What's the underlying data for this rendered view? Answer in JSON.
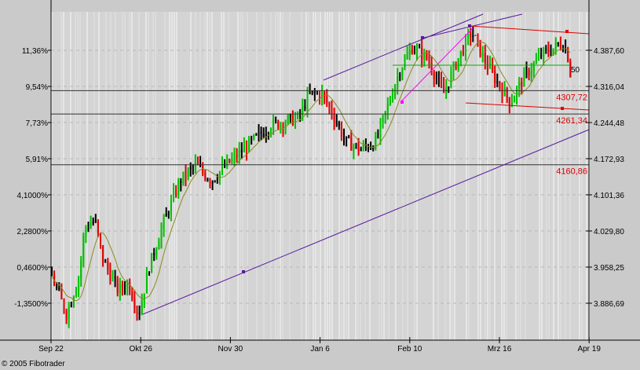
{
  "chart_data": {
    "type": "ohlc",
    "x_ticks": [
      "Sep 22",
      "Okt 26",
      "Nov 30",
      "Jan 6",
      "Feb 10",
      "Mrz 16",
      "Apr 19"
    ],
    "y_left_ticks": [
      "11,36%",
      "9,54%",
      "7,73%",
      "5,91%",
      "4,1000%",
      "2,2800%",
      "0,4600%",
      "-1,3500%"
    ],
    "y_right_ticks": [
      "4.387,60",
      "4.316,04",
      "4.244,48",
      "4.172,93",
      "4.101,36",
      "4.029,80",
      "3.958,25",
      "3.886,69"
    ],
    "ylim": [
      3850,
      4470
    ],
    "close_path": [
      [
        "Sep 22",
        3942.7
      ],
      [
        "Sep 28",
        3864.9
      ],
      [
        "Oct 3",
        3942.7
      ],
      [
        "Oct 5",
        4036.0
      ],
      [
        "Oct 9",
        4051.6
      ],
      [
        "Oct 12",
        3973.8
      ],
      [
        "Oct 18",
        3911.6
      ],
      [
        "Oct 22",
        3927.1
      ],
      [
        "Oct 26",
        3864.9
      ],
      [
        "Oct 30",
        3958.2
      ],
      [
        "Nov 5",
        4051.6
      ],
      [
        "Nov 11",
        4129.4
      ],
      [
        "Nov 17",
        4160.5
      ],
      [
        "Nov 23",
        4129.4
      ],
      [
        "Nov 29",
        4160.5
      ],
      [
        "Dec 9",
        4207.1
      ],
      [
        "Dec 16",
        4238.3
      ],
      [
        "Dec 27",
        4253.8
      ],
      [
        "Dec 31",
        4300.5
      ],
      [
        "Jan 5",
        4300.5
      ],
      [
        "Jan 10",
        4253.8
      ],
      [
        "Jan 14",
        4207.1
      ],
      [
        "Jan 20",
        4191.6
      ],
      [
        "Jan 26",
        4207.1
      ],
      [
        "Jan 31",
        4284.9
      ],
      [
        "Feb 4",
        4347.1
      ],
      [
        "Feb 9",
        4393.8
      ],
      [
        "Feb 15",
        4370.5
      ],
      [
        "Feb 21",
        4300.5
      ],
      [
        "Feb 26",
        4362.7
      ],
      [
        "Mar 4",
        4425.0
      ],
      [
        "Mar 8",
        4378.3
      ],
      [
        "Mar 13",
        4331.6
      ],
      [
        "Mar 19",
        4284.9
      ],
      [
        "Mar 24",
        4331.6
      ],
      [
        "Mar 31",
        4378.3
      ],
      [
        "Apr 8",
        4401.6
      ],
      [
        "Apr 10",
        4386.0
      ],
      [
        "Apr 12",
        4316.0
      ]
    ],
    "levels": [
      {
        "label": "4307,72",
        "value": 4307.72
      },
      {
        "label": "4261,34",
        "value": 4261.34
      },
      {
        "label": "4160,86",
        "value": 4160.86
      }
    ],
    "marker_label": "50",
    "moving_average": true,
    "grid": true,
    "colors": {
      "up": "#00c000",
      "down": "#e00000",
      "neutral": "#000000",
      "ma": "#8a8a20",
      "trend": "#5a1aa0",
      "channel": "#e00000",
      "fan": "#ff00ff",
      "pivot": "#00b000"
    }
  },
  "footer": {
    "copyright": "© 2005 Fibotrader"
  }
}
